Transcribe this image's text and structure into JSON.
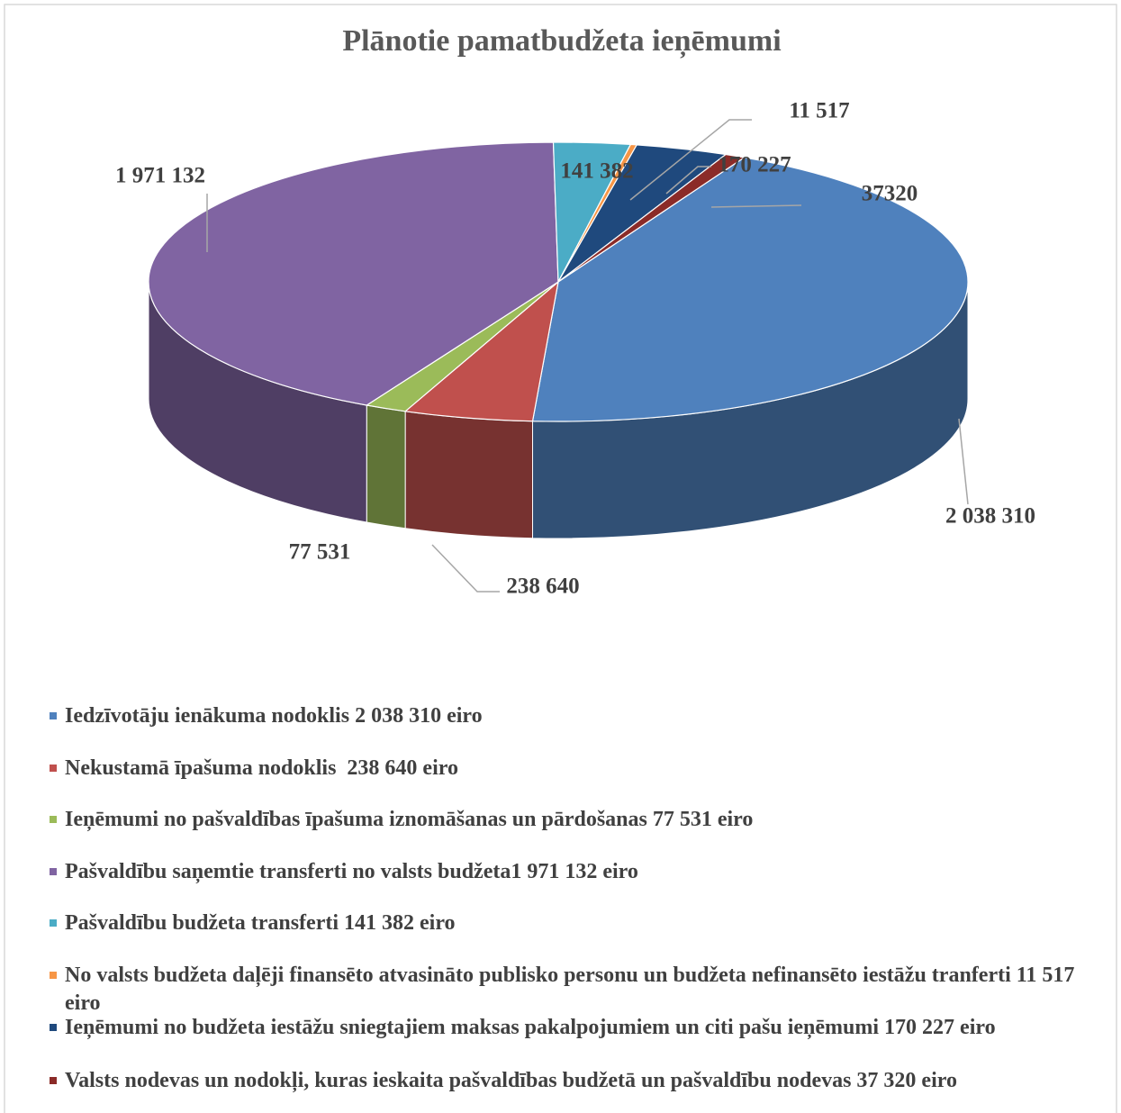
{
  "chart_data": {
    "type": "pie",
    "title": "Plānotie pamatbudžeta ieņēmumi",
    "categories": [
      "Iedzīvotāju ienākuma nodoklis 2 038 310 eiro",
      "Nekustamā īpašuma nodoklis  238 640 eiro",
      "Ieņēmumi no pašvaldības īpašuma iznomāšanas un pārdošanas 77 531 eiro",
      "Pašvaldību saņemtie transferti no valsts budžeta1 971 132 eiro",
      "Pašvaldību budžeta transferti 141 382 eiro",
      "No valsts budžeta daļēji finansēto atvasināto publisko personu un budžeta nefinansēto iestāžu tranferti 11 517 eiro",
      "Ieņēmumi no budžeta iestāžu sniegtajiem maksas pakalpojumiem un citi pašu ieņēmumi 170 227 eiro",
      "Valsts nodevas un nodokļi, kuras ieskaita pašvaldības budžetā un pašvaldību nodevas 37 320 eiro"
    ],
    "values": [
      2038310,
      238640,
      77531,
      1971132,
      141382,
      11517,
      170227,
      37320
    ],
    "value_labels": [
      "2 038 310",
      "238 640",
      "77 531",
      "1 971 132",
      "141 382",
      "11 517",
      "170 227",
      "37320"
    ],
    "colors": [
      "#4f81bd",
      "#c0504d",
      "#9bbb59",
      "#8064a2",
      "#4bacc6",
      "#f79646",
      "#1f497d",
      "#8b2b28"
    ],
    "legend": "bottom"
  }
}
